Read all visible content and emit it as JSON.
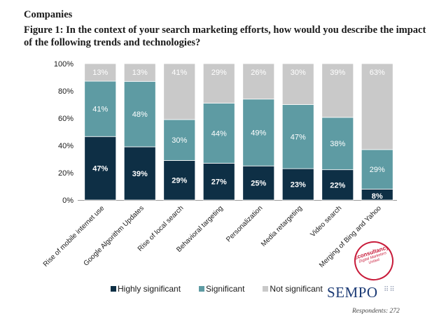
{
  "header": {
    "supertitle": "Companies",
    "title": "Figure 1: In the context of your search marketing efforts, how would you describe the impact of the following trends and technologies?"
  },
  "footer": {
    "brand": "SEMPO",
    "brand_mark": "⠿⠿",
    "respondents": "Respondents: 272",
    "stamp_line1": "Econsultancy",
    "stamp_line2": "Digital Marketers United"
  },
  "colors": {
    "highly_significant": "#0e2f45",
    "significant": "#5e9ba3",
    "not_significant": "#c9c9c9",
    "stamp": "#c81b3a",
    "brand": "#1b3a75"
  },
  "chart_data": {
    "type": "bar",
    "stacked": true,
    "categories": [
      "Rise of mobile internet use",
      "Google Algorithm Updates",
      "Rise of local search",
      "Behavioral targeting",
      "Personalization",
      "Media retargeting",
      "Video search",
      "Merging of Bing and Yahoo"
    ],
    "series": [
      {
        "name": "Highly significant",
        "values": [
          47,
          39,
          29,
          27,
          25,
          23,
          22,
          8
        ]
      },
      {
        "name": "Significant",
        "values": [
          41,
          48,
          30,
          44,
          49,
          47,
          38,
          29
        ]
      },
      {
        "name": "Not significant",
        "values": [
          13,
          13,
          41,
          29,
          26,
          30,
          39,
          63
        ]
      }
    ],
    "value_labels": [
      [
        "47%",
        "39%",
        "29%",
        "27%",
        "25%",
        "23%",
        "22%",
        "8%"
      ],
      [
        "41%",
        "48%",
        "30%",
        "44%",
        "49%",
        "47%",
        "38%",
        "29%"
      ],
      [
        "13%",
        "13%",
        "41%",
        "29%",
        "26%",
        "30%",
        "39%",
        "63%"
      ]
    ],
    "yticks": [
      "0%",
      "20%",
      "40%",
      "60%",
      "80%",
      "100%"
    ],
    "ylim": [
      0,
      100
    ],
    "legend": {
      "position": "bottom"
    },
    "grid": false
  }
}
